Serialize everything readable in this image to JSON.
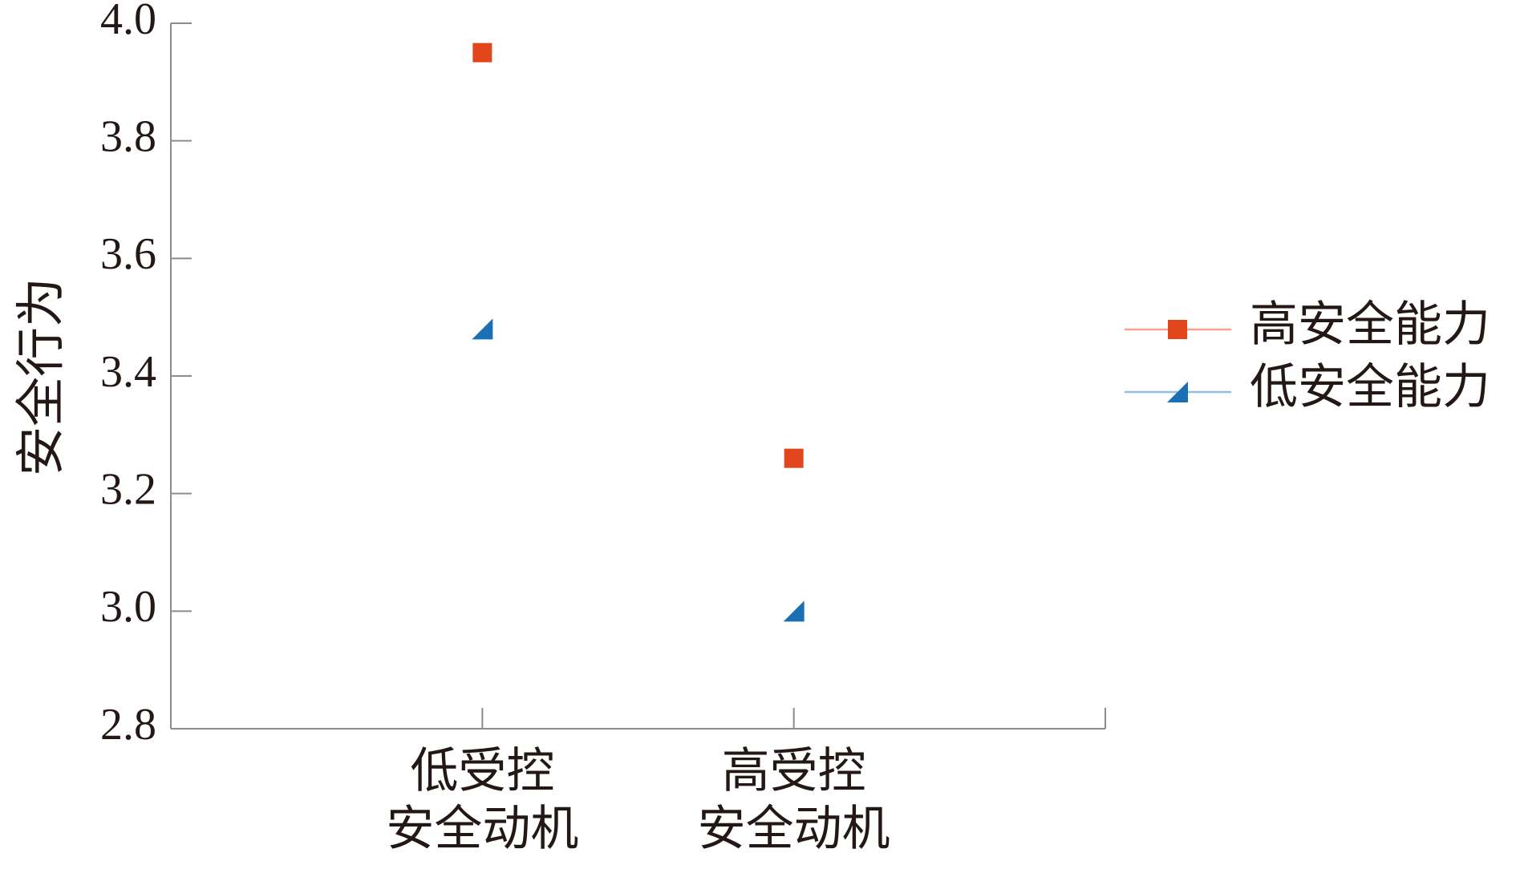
{
  "chart_data": {
    "type": "line",
    "y_label": "安全行为",
    "categories": [
      [
        "低受控",
        "安全动机"
      ],
      [
        "高受控",
        "安全动机"
      ]
    ],
    "series": [
      {
        "name": "高安全能力",
        "color": "#e2461d",
        "line_color": "#f2a58a",
        "marker": "square",
        "values": [
          3.95,
          3.26
        ]
      },
      {
        "name": "低安全能力",
        "color": "#1b6fb4",
        "line_color": "#93bde3",
        "marker": "triangle",
        "values": [
          3.48,
          3.0
        ]
      }
    ],
    "ylim": [
      2.8,
      4.0
    ],
    "yticks": [
      2.8,
      {
        "value": 3.0,
        "label": "3.0"
      },
      3.2,
      3.4,
      3.6,
      3.8,
      {
        "value": 4.0,
        "label": "4.0"
      }
    ],
    "legend": "right"
  }
}
